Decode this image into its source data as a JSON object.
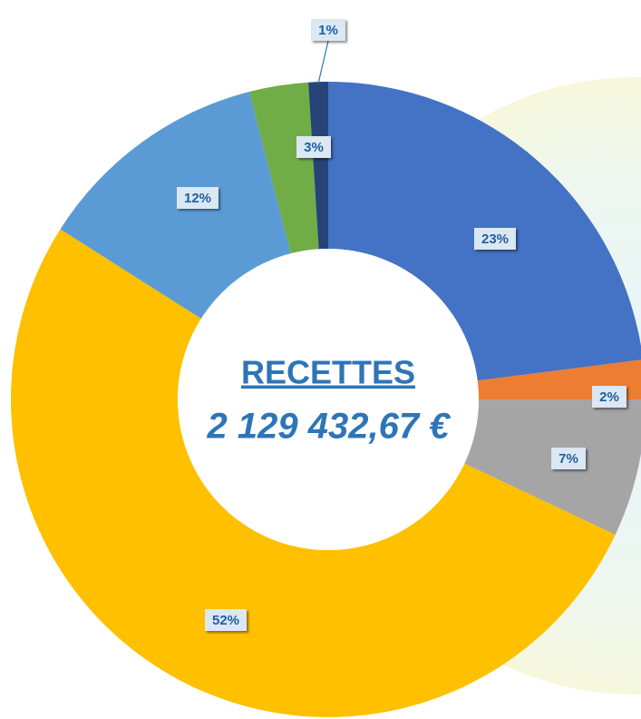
{
  "chart_data": {
    "type": "pie",
    "donut": true,
    "center_title": "RECETTES",
    "center_value": "2 129 432,67 €",
    "values": [
      23,
      2,
      7,
      52,
      12,
      3,
      1
    ],
    "value_labels": [
      "23%",
      "2%",
      "7%",
      "52%",
      "12%",
      "3%",
      "1%"
    ],
    "colors": [
      "#4472c4",
      "#ed7d31",
      "#a5a5a5",
      "#ffc000",
      "#5b9bd5",
      "#70ad47",
      "#264478"
    ]
  }
}
